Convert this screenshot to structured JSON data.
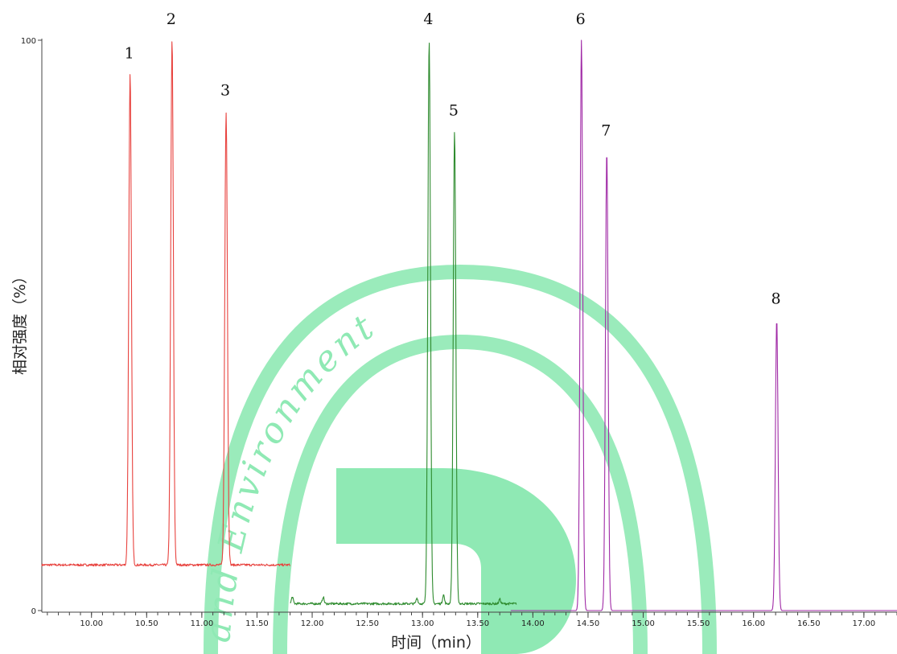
{
  "chart_data": {
    "type": "line",
    "title": "",
    "xlabel": "时间（min）",
    "ylabel": "相对强度（%）",
    "xlim": [
      9.55,
      17.3
    ],
    "ylim": [
      0,
      100
    ],
    "y_tick_labels": [
      "0",
      "100"
    ],
    "x_tick_labels": [
      "10.00",
      "10.50",
      "11.00",
      "11.50",
      "12.00",
      "12.50",
      "13.00",
      "13.50",
      "14.00",
      "14.50",
      "15.00",
      "15.50",
      "16.00",
      "16.50",
      "17.00"
    ],
    "x_ticks": [
      10.0,
      10.5,
      11.0,
      11.5,
      12.0,
      12.5,
      13.0,
      13.5,
      14.0,
      14.5,
      15.0,
      15.5,
      16.0,
      16.5,
      17.0
    ],
    "grid": false,
    "series": [
      {
        "color": "#e8433f",
        "x_range": [
          9.55,
          11.8
        ],
        "baseline": 8,
        "peaks": [
          {
            "label": "1",
            "x": 10.35,
            "y": 94
          },
          {
            "label": "2",
            "x": 10.73,
            "y": 100
          },
          {
            "label": "3",
            "x": 11.22,
            "y": 87.5
          }
        ]
      },
      {
        "color": "#2e8b2e",
        "x_range": [
          11.8,
          13.85
        ],
        "baseline": 1.2,
        "peaks": [
          {
            "label": "4",
            "x": 13.06,
            "y": 100
          },
          {
            "label": "5",
            "x": 13.29,
            "y": 84
          }
        ],
        "minor_peaks": [
          {
            "x": 11.82,
            "y": 2.4
          },
          {
            "x": 12.1,
            "y": 2.4
          },
          {
            "x": 12.95,
            "y": 2.2
          },
          {
            "x": 13.19,
            "y": 2.8
          },
          {
            "x": 13.7,
            "y": 2.0
          }
        ]
      },
      {
        "color": "#a02aa6",
        "x_range": [
          13.8,
          17.3
        ],
        "baseline": 0,
        "peaks": [
          {
            "label": "6",
            "x": 14.44,
            "y": 100
          },
          {
            "label": "7",
            "x": 14.67,
            "y": 80.5
          },
          {
            "label": "8",
            "x": 16.21,
            "y": 51
          }
        ]
      }
    ]
  },
  "watermark": {
    "text": "and Environment",
    "color": "#8fe9b4"
  }
}
